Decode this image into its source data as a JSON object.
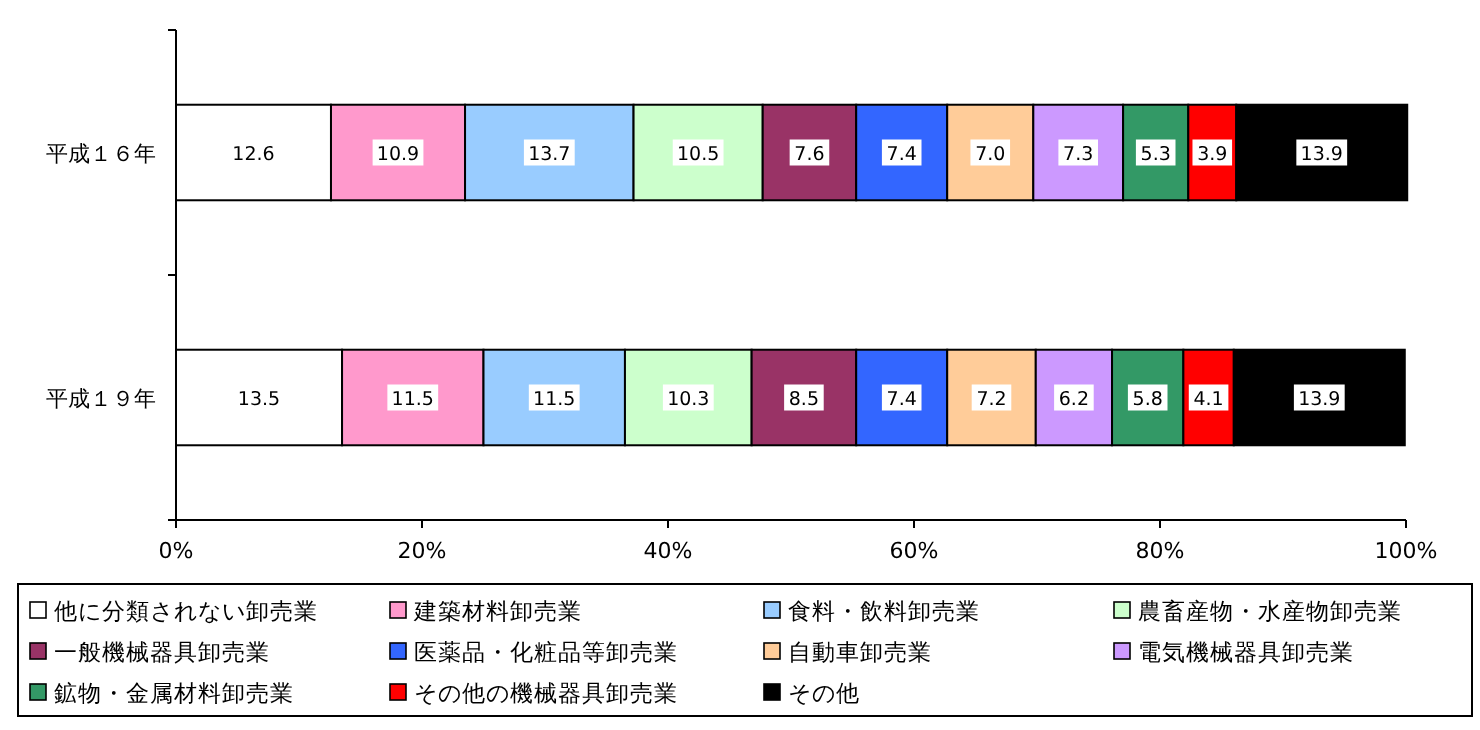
{
  "chart_data": {
    "type": "bar",
    "orientation": "horizontal",
    "stacked": true,
    "categories": [
      "平成１６年",
      "平成１９年"
    ],
    "xlim": [
      0,
      100
    ],
    "xticks": [
      {
        "value": 0,
        "label": "0%"
      },
      {
        "value": 20,
        "label": "20%"
      },
      {
        "value": 40,
        "label": "40%"
      },
      {
        "value": 60,
        "label": "60%"
      },
      {
        "value": 80,
        "label": "80%"
      },
      {
        "value": 100,
        "label": "100%"
      }
    ],
    "legend": "bottom",
    "grid": false,
    "series": [
      {
        "name": "他に分類されない卸売業",
        "color": "#ffffff",
        "values": [
          12.6,
          13.5
        ],
        "value_labels": [
          "12.6",
          "13.5"
        ]
      },
      {
        "name": "建築材料卸売業",
        "color": "#ff99cc",
        "values": [
          10.9,
          11.5
        ],
        "value_labels": [
          "10.9",
          "11.5"
        ]
      },
      {
        "name": "食料・飲料卸売業",
        "color": "#99ccff",
        "values": [
          13.7,
          11.5
        ],
        "value_labels": [
          "13.7",
          "11.5"
        ]
      },
      {
        "name": "農畜産物・水産物卸売業",
        "color": "#ccffcc",
        "values": [
          10.5,
          10.3
        ],
        "value_labels": [
          "10.5",
          "10.3"
        ]
      },
      {
        "name": "一般機械器具卸売業",
        "color": "#993366",
        "values": [
          7.6,
          8.5
        ],
        "value_labels": [
          "7.6",
          "8.5"
        ]
      },
      {
        "name": "医薬品・化粧品等卸売業",
        "color": "#3366ff",
        "values": [
          7.4,
          7.4
        ],
        "value_labels": [
          "7.4",
          "7.4"
        ]
      },
      {
        "name": "自動車卸売業",
        "color": "#ffcc99",
        "values": [
          7.0,
          7.2
        ],
        "value_labels": [
          "7.0",
          "7.2"
        ]
      },
      {
        "name": "電気機械器具卸売業",
        "color": "#cc99ff",
        "values": [
          7.3,
          6.2
        ],
        "value_labels": [
          "7.3",
          "6.2"
        ]
      },
      {
        "name": "鉱物・金属材料卸売業",
        "color": "#339966",
        "values": [
          5.3,
          5.8
        ],
        "value_labels": [
          "5.3",
          "5.8"
        ]
      },
      {
        "name": "その他の機械器具卸売業",
        "color": "#ff0000",
        "values": [
          3.9,
          4.1
        ],
        "value_labels": [
          "3.9",
          "4.1"
        ]
      },
      {
        "name": "その他",
        "color": "#000000",
        "values": [
          13.9,
          13.9
        ],
        "value_labels": [
          "13.9",
          "13.9"
        ]
      }
    ]
  }
}
